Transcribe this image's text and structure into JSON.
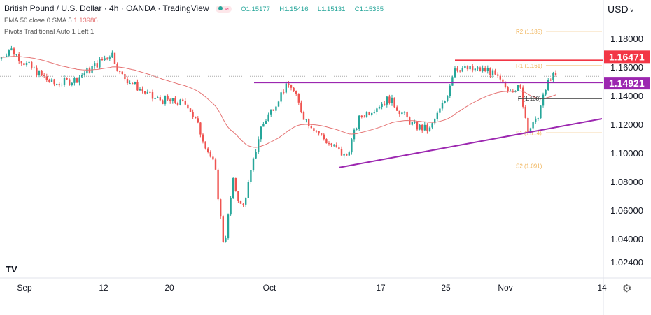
{
  "header": {
    "title": "British Pound / U.S. Dollar · 4h · OANDA · TradingView",
    "open": "O1.15177",
    "high": "H1.15416",
    "low": "L1.15131",
    "close": "C1.15355",
    "ema_label": "EMA 50 close 0 SMA 5",
    "ema_value": "1.13986",
    "pivots_label": "Pivots Traditional Auto 1 Left 1"
  },
  "currency": "USD",
  "chart_data": {
    "type": "candlestick",
    "ylim": [
      1.018,
      1.2
    ],
    "y_ticks": [
      "1.18000",
      "1.16000",
      "1.14000",
      "1.12000",
      "1.10000",
      "1.08000",
      "1.06000",
      "1.04000",
      "1.02400"
    ],
    "x_ticks": [
      "Sep",
      "12",
      "20",
      "Oct",
      "17",
      "25",
      "Nov",
      "14"
    ],
    "price_path": [
      [
        "2022-08-29",
        1.168
      ],
      [
        "2022-08-30",
        1.173
      ],
      [
        "2022-09-01",
        1.163
      ],
      [
        "2022-09-05",
        1.148
      ],
      [
        "2022-09-08",
        1.151
      ],
      [
        "2022-09-10",
        1.158
      ],
      [
        "2022-09-13",
        1.17
      ],
      [
        "2022-09-14",
        1.155
      ],
      [
        "2022-09-18",
        1.138
      ],
      [
        "2022-09-22",
        1.134
      ],
      [
        "2022-09-23",
        1.121
      ],
      [
        "2022-09-25",
        1.09
      ],
      [
        "2022-09-26",
        1.034
      ],
      [
        "2022-09-27",
        1.08
      ],
      [
        "2022-09-28",
        1.06
      ],
      [
        "2022-09-29",
        1.087
      ],
      [
        "2022-09-30",
        1.117
      ],
      [
        "2022-10-03",
        1.144
      ],
      [
        "2022-10-04",
        1.148
      ],
      [
        "2022-10-06",
        1.125
      ],
      [
        "2022-10-09",
        1.109
      ],
      [
        "2022-10-12",
        1.097
      ],
      [
        "2022-10-14",
        1.125
      ],
      [
        "2022-10-18",
        1.138
      ],
      [
        "2022-10-21",
        1.119
      ],
      [
        "2022-10-23",
        1.116
      ],
      [
        "2022-10-25",
        1.138
      ],
      [
        "2022-10-26",
        1.16
      ],
      [
        "2022-10-28",
        1.158
      ],
      [
        "2022-10-30",
        1.158
      ],
      [
        "2022-11-01",
        1.146
      ],
      [
        "2022-11-03",
        1.145
      ],
      [
        "2022-11-04",
        1.117
      ],
      [
        "2022-11-05",
        1.12
      ],
      [
        "2022-11-07",
        1.1535
      ]
    ],
    "levels": {
      "resistance": {
        "value": 1.16471,
        "label": "1.16471",
        "color": "#f23645"
      },
      "support": {
        "value": 1.14921,
        "label": "1.14921",
        "color": "#9c27b0"
      },
      "last_price": 1.15355
    },
    "pivots": [
      {
        "label": "R2 (1.185)",
        "value": 1.185
      },
      {
        "label": "R1 (1.161)",
        "value": 1.161
      },
      {
        "label": "P (1.138)",
        "value": 1.138
      },
      {
        "label": "S1 (1.114)",
        "value": 1.114
      },
      {
        "label": "S2 (1.091)",
        "value": 1.091
      }
    ],
    "trendline": [
      [
        "2022-10-11",
        1.0898
      ],
      [
        "2022-11-14",
        1.1239
      ]
    ],
    "colors": {
      "up": "#26a69a",
      "down": "#ef5350",
      "ema": "#e57373",
      "pivot": "#f0b45a",
      "trend": "#9c27b0"
    }
  }
}
